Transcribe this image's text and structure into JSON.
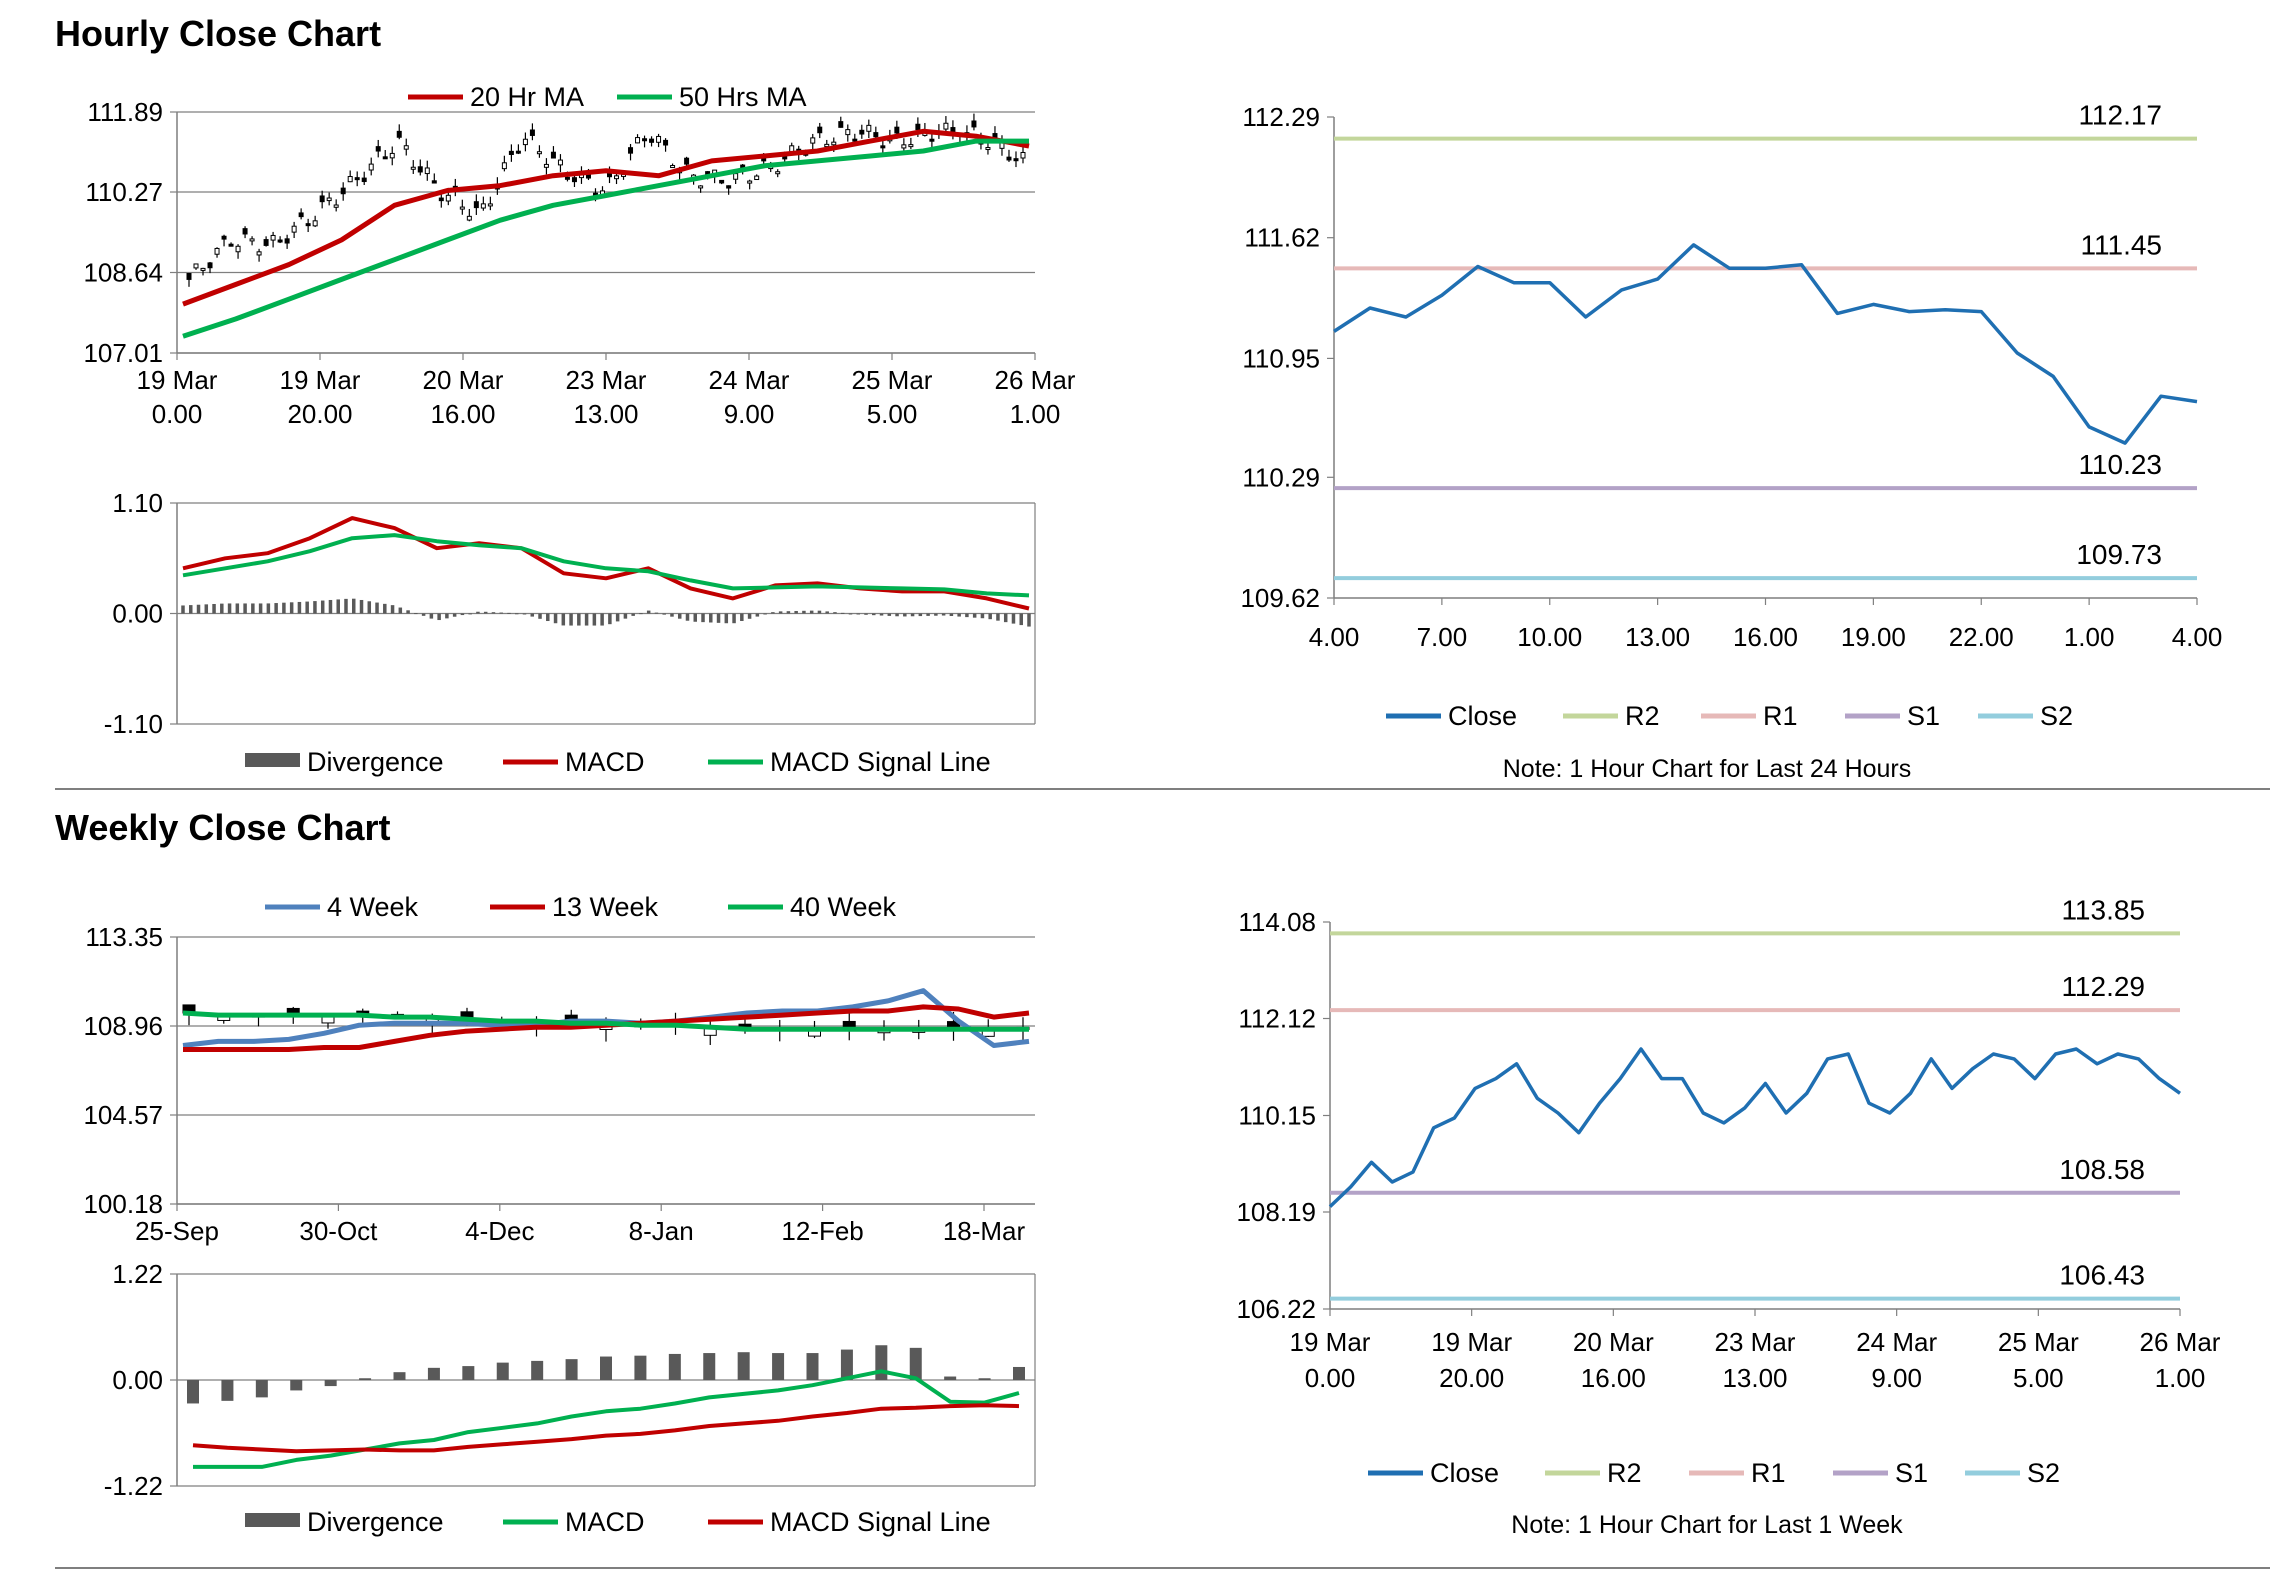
{
  "colors": {
    "ma20": "#c00000",
    "ma50": "#00b050",
    "macd_red": "#c00000",
    "macd_green": "#00b050",
    "divergence": "#595959",
    "close": "#1f6fb2",
    "r2": "#c3d69b",
    "r1": "#e6b9b8",
    "s1": "#b3a2c7",
    "s2": "#93cddd",
    "wk4": "#4f81bd",
    "grid": "#7f7f7f"
  },
  "sections": {
    "hourly_title": "Hourly Close Chart",
    "weekly_title": "Weekly Close Chart"
  },
  "chart_data": [
    {
      "id": "hourly_price",
      "type": "candlestick",
      "title": "",
      "yticks": [
        "111.89",
        "110.27",
        "108.64",
        "107.01"
      ],
      "ylim": [
        107.01,
        111.89
      ],
      "xticks": [
        [
          "19 Mar",
          "0.00"
        ],
        [
          "19 Mar",
          "20.00"
        ],
        [
          "20 Mar",
          "16.00"
        ],
        [
          "23 Mar",
          "13.00"
        ],
        [
          "24 Mar",
          "9.00"
        ],
        [
          "25 Mar",
          "5.00"
        ],
        [
          "26 Mar",
          "1.00"
        ]
      ],
      "legend": [
        "20 Hr MA",
        "50 Hrs MA"
      ],
      "series": [
        {
          "name": "20 Hr MA",
          "values": [
            108.0,
            108.4,
            108.8,
            109.3,
            110.0,
            110.3,
            110.4,
            110.6,
            110.7,
            110.6,
            110.9,
            111.0,
            111.1,
            111.3,
            111.5,
            111.4,
            111.2
          ]
        },
        {
          "name": "50 Hrs MA",
          "values": [
            107.35,
            107.7,
            108.1,
            108.5,
            108.9,
            109.3,
            109.7,
            110.0,
            110.2,
            110.4,
            110.6,
            110.8,
            110.9,
            111.0,
            111.1,
            111.3,
            111.3
          ]
        }
      ],
      "close": [
        108.5,
        109.3,
        109.2,
        109.8,
        110.5,
        111.3,
        110.3,
        109.8,
        111.4,
        110.7,
        110.3,
        111.5,
        110.6,
        110.5,
        110.8,
        111.3,
        111.5,
        111.3,
        111.5,
        111.4,
        110.9
      ]
    },
    {
      "id": "hourly_macd",
      "type": "macd",
      "yticks": [
        "1.10",
        "0.00",
        "-1.10"
      ],
      "ylim": [
        -1.1,
        1.1
      ],
      "legend": [
        "Divergence",
        "MACD",
        "MACD Signal Line"
      ],
      "series": [
        {
          "name": "MACD",
          "values": [
            0.45,
            0.55,
            0.6,
            0.75,
            0.95,
            0.85,
            0.65,
            0.7,
            0.65,
            0.4,
            0.35,
            0.45,
            0.25,
            0.15,
            0.28,
            0.3,
            0.25,
            0.22,
            0.22,
            0.15,
            0.05
          ]
        },
        {
          "name": "MACD Signal Line",
          "values": [
            0.38,
            0.45,
            0.52,
            0.62,
            0.75,
            0.78,
            0.72,
            0.68,
            0.65,
            0.52,
            0.45,
            0.42,
            0.33,
            0.25,
            0.26,
            0.27,
            0.26,
            0.25,
            0.24,
            0.2,
            0.18
          ]
        },
        {
          "name": "Divergence",
          "values": [
            0.08,
            0.1,
            0.1,
            0.12,
            0.15,
            0.08,
            -0.07,
            0.02,
            0.0,
            -0.12,
            -0.12,
            0.03,
            -0.08,
            -0.1,
            0.02,
            0.03,
            -0.01,
            -0.03,
            -0.02,
            -0.05,
            -0.13
          ]
        }
      ]
    },
    {
      "id": "hourly_24h",
      "type": "line",
      "yticks": [
        "112.29",
        "111.62",
        "110.95",
        "110.29",
        "109.62"
      ],
      "ylim": [
        109.62,
        112.29
      ],
      "xticks": [
        "4.00",
        "7.00",
        "10.00",
        "13.00",
        "16.00",
        "19.00",
        "22.00",
        "1.00",
        "4.00"
      ],
      "levels": [
        {
          "name": "R2",
          "value": 112.17,
          "label": "112.17"
        },
        {
          "name": "R1",
          "value": 111.45,
          "label": "111.45"
        },
        {
          "name": "S1",
          "value": 110.23,
          "label": "110.23"
        },
        {
          "name": "S2",
          "value": 109.73,
          "label": "109.73"
        }
      ],
      "close": [
        111.1,
        111.23,
        111.18,
        111.3,
        111.46,
        111.37,
        111.37,
        111.18,
        111.33,
        111.39,
        111.58,
        111.45,
        111.45,
        111.47,
        111.2,
        111.25,
        111.21,
        111.22,
        111.21,
        110.98,
        110.85,
        110.57,
        110.48,
        110.74,
        110.71
      ],
      "legend": [
        "Close",
        "R2",
        "R1",
        "S1",
        "S2"
      ],
      "note": "Note: 1 Hour Chart for Last 24 Hours"
    },
    {
      "id": "weekly_price",
      "type": "candlestick",
      "yticks": [
        "113.35",
        "108.96",
        "104.57",
        "100.18"
      ],
      "ylim": [
        100.18,
        113.35
      ],
      "xticks": [
        "25-Sep",
        "30-Oct",
        "4-Dec",
        "8-Jan",
        "12-Feb",
        "18-Mar"
      ],
      "legend": [
        "4 Week",
        "13 Week",
        "40 Week"
      ],
      "series": [
        {
          "name": "4 Week",
          "values": [
            108.0,
            108.2,
            108.2,
            108.3,
            108.6,
            109.0,
            109.1,
            109.1,
            109.1,
            109.0,
            109.0,
            109.2,
            109.2,
            109.1,
            109.2,
            109.4,
            109.6,
            109.7,
            109.7,
            109.9,
            110.2,
            110.7,
            109.2,
            108.0,
            108.2
          ]
        },
        {
          "name": "13 Week",
          "values": [
            107.8,
            107.8,
            107.8,
            107.8,
            107.9,
            107.9,
            108.2,
            108.5,
            108.7,
            108.8,
            108.9,
            108.9,
            109.0,
            109.1,
            109.2,
            109.3,
            109.4,
            109.5,
            109.6,
            109.7,
            109.7,
            109.9,
            109.8,
            109.4,
            109.6
          ]
        },
        {
          "name": "40 Week",
          "values": [
            109.6,
            109.5,
            109.5,
            109.5,
            109.5,
            109.5,
            109.4,
            109.4,
            109.3,
            109.2,
            109.2,
            109.1,
            109.1,
            109.0,
            109.0,
            108.9,
            108.8,
            108.8,
            108.8,
            108.8,
            108.8,
            108.8,
            108.8,
            108.8,
            108.8
          ]
        }
      ]
    },
    {
      "id": "weekly_macd",
      "type": "macd",
      "yticks": [
        "1.22",
        "0.00",
        "-1.22"
      ],
      "ylim": [
        -1.22,
        1.22
      ],
      "legend": [
        "Divergence",
        "MACD",
        "MACD Signal Line"
      ],
      "series": [
        {
          "name": "Divergence",
          "values": [
            -0.27,
            -0.24,
            -0.2,
            -0.12,
            -0.07,
            0.02,
            0.09,
            0.14,
            0.16,
            0.2,
            0.22,
            0.24,
            0.27,
            0.28,
            0.3,
            0.31,
            0.32,
            0.31,
            0.31,
            0.35,
            0.4,
            0.37,
            0.04,
            0.02,
            0.15
          ]
        },
        {
          "name": "MACD",
          "values": [
            -1.0,
            -1.0,
            -1.0,
            -0.92,
            -0.87,
            -0.8,
            -0.73,
            -0.69,
            -0.6,
            -0.55,
            -0.5,
            -0.42,
            -0.36,
            -0.33,
            -0.27,
            -0.2,
            -0.16,
            -0.12,
            -0.06,
            0.02,
            0.1,
            0.02,
            -0.25,
            -0.26,
            -0.15
          ]
        },
        {
          "name": "MACD Signal Line",
          "values": [
            -0.75,
            -0.78,
            -0.8,
            -0.82,
            -0.81,
            -0.8,
            -0.81,
            -0.81,
            -0.77,
            -0.74,
            -0.71,
            -0.68,
            -0.64,
            -0.62,
            -0.58,
            -0.53,
            -0.5,
            -0.47,
            -0.42,
            -0.38,
            -0.33,
            -0.32,
            -0.3,
            -0.29,
            -0.3
          ]
        }
      ]
    },
    {
      "id": "weekly_1w",
      "type": "line",
      "yticks": [
        "114.08",
        "112.12",
        "110.15",
        "108.19",
        "106.22"
      ],
      "ylim": [
        106.22,
        114.08
      ],
      "xticks": [
        [
          "19 Mar",
          "0.00"
        ],
        [
          "19 Mar",
          "20.00"
        ],
        [
          "20 Mar",
          "16.00"
        ],
        [
          "23 Mar",
          "13.00"
        ],
        [
          "24 Mar",
          "9.00"
        ],
        [
          "25 Mar",
          "5.00"
        ],
        [
          "26 Mar",
          "1.00"
        ]
      ],
      "levels": [
        {
          "name": "R2",
          "value": 113.85,
          "label": "113.85"
        },
        {
          "name": "R1",
          "value": 112.29,
          "label": "112.29"
        },
        {
          "name": "S1",
          "value": 108.58,
          "label": "108.58"
        },
        {
          "name": "S2",
          "value": 106.43,
          "label": "106.43"
        }
      ],
      "close": [
        108.3,
        108.7,
        109.2,
        108.8,
        109.0,
        109.9,
        110.1,
        110.7,
        110.9,
        111.2,
        110.5,
        110.2,
        109.8,
        110.4,
        110.9,
        111.5,
        110.9,
        110.9,
        110.2,
        110.0,
        110.3,
        110.8,
        110.2,
        110.6,
        111.3,
        111.4,
        110.4,
        110.2,
        110.6,
        111.3,
        110.7,
        111.1,
        111.4,
        111.3,
        110.9,
        111.4,
        111.5,
        111.2,
        111.4,
        111.3,
        110.9,
        110.6
      ],
      "legend": [
        "Close",
        "R2",
        "R1",
        "S1",
        "S2"
      ],
      "note": "Note: 1 Hour Chart for Last 1 Week"
    }
  ]
}
